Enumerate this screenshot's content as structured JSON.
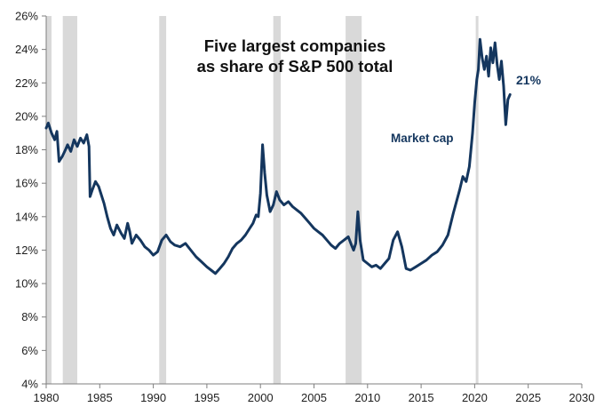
{
  "chart_data": {
    "type": "line",
    "title_line1": "Five largest companies",
    "title_line2": "as share of S&P 500 total",
    "xlabel": "",
    "ylabel": "",
    "xlim": [
      1980,
      2030
    ],
    "ylim": [
      4,
      26
    ],
    "x_ticks": [
      1980,
      1985,
      1990,
      1995,
      2000,
      2005,
      2010,
      2015,
      2020,
      2025,
      2030
    ],
    "x_tick_labels": [
      "1980",
      "1985",
      "1990",
      "1995",
      "2000",
      "2005",
      "2010",
      "2015",
      "2020",
      "2025",
      "2030"
    ],
    "y_ticks": [
      4,
      6,
      8,
      10,
      12,
      14,
      16,
      18,
      20,
      22,
      24,
      26
    ],
    "y_tick_labels": [
      "4%",
      "6%",
      "8%",
      "10%",
      "12%",
      "14%",
      "16%",
      "18%",
      "20%",
      "22%",
      "24%",
      "26%"
    ],
    "grid": false,
    "recessions": [
      {
        "start": 1980.0,
        "end": 1980.5
      },
      {
        "start": 1981.55,
        "end": 1982.9
      },
      {
        "start": 1990.55,
        "end": 1991.2
      },
      {
        "start": 2001.2,
        "end": 2001.9
      },
      {
        "start": 2007.95,
        "end": 2009.45
      },
      {
        "start": 2020.1,
        "end": 2020.35
      }
    ],
    "series": [
      {
        "name": "Market cap",
        "color": "#14365e",
        "end_label": "21%",
        "x": [
          1980.0,
          1980.2,
          1980.5,
          1980.8,
          1981.0,
          1981.2,
          1981.5,
          1981.8,
          1982.0,
          1982.3,
          1982.6,
          1982.9,
          1983.2,
          1983.5,
          1983.8,
          1984.0,
          1984.1,
          1984.3,
          1984.6,
          1984.9,
          1985.1,
          1985.4,
          1985.7,
          1986.0,
          1986.3,
          1986.6,
          1987.0,
          1987.3,
          1987.6,
          1987.8,
          1988.0,
          1988.4,
          1988.8,
          1989.2,
          1989.6,
          1990.0,
          1990.4,
          1990.8,
          1991.2,
          1991.6,
          1992.0,
          1992.5,
          1993.0,
          1993.5,
          1994.0,
          1994.5,
          1995.0,
          1995.4,
          1995.8,
          1996.2,
          1996.6,
          1997.0,
          1997.4,
          1997.8,
          1998.2,
          1998.6,
          1999.0,
          1999.3,
          1999.6,
          1999.8,
          2000.0,
          2000.2,
          2000.4,
          2000.6,
          2000.9,
          2001.2,
          2001.5,
          2001.8,
          2002.2,
          2002.6,
          2003.0,
          2003.4,
          2003.8,
          2004.2,
          2004.6,
          2005.0,
          2005.4,
          2005.8,
          2006.2,
          2006.6,
          2007.0,
          2007.4,
          2007.8,
          2008.2,
          2008.5,
          2008.7,
          2008.9,
          2009.1,
          2009.3,
          2009.6,
          2010.0,
          2010.4,
          2010.8,
          2011.2,
          2011.6,
          2012.0,
          2012.4,
          2012.8,
          2013.2,
          2013.6,
          2014.0,
          2014.5,
          2015.0,
          2015.5,
          2016.0,
          2016.5,
          2017.0,
          2017.5,
          2018.0,
          2018.3,
          2018.6,
          2018.9,
          2019.2,
          2019.5,
          2019.8,
          2020.0,
          2020.2,
          2020.35,
          2020.5,
          2020.7,
          2020.9,
          2021.1,
          2021.3,
          2021.5,
          2021.7,
          2021.9,
          2022.1,
          2022.3,
          2022.5,
          2022.7,
          2022.9,
          2023.1,
          2023.3
        ],
        "values": [
          19.3,
          19.6,
          19.0,
          18.6,
          19.1,
          17.3,
          17.6,
          18.0,
          18.3,
          17.9,
          18.6,
          18.2,
          18.7,
          18.4,
          18.9,
          18.2,
          15.2,
          15.6,
          16.1,
          15.8,
          15.4,
          14.8,
          14.0,
          13.3,
          12.9,
          13.5,
          13.0,
          12.7,
          13.6,
          13.1,
          12.4,
          12.9,
          12.6,
          12.2,
          12.0,
          11.7,
          11.9,
          12.6,
          12.9,
          12.5,
          12.3,
          12.2,
          12.4,
          12.0,
          11.6,
          11.3,
          11.0,
          10.8,
          10.6,
          10.9,
          11.2,
          11.6,
          12.1,
          12.4,
          12.6,
          12.9,
          13.3,
          13.6,
          14.1,
          14.0,
          15.4,
          18.3,
          16.6,
          15.3,
          14.3,
          14.7,
          15.5,
          15.0,
          14.7,
          14.9,
          14.6,
          14.4,
          14.2,
          13.9,
          13.6,
          13.3,
          13.1,
          12.9,
          12.6,
          12.3,
          12.1,
          12.4,
          12.6,
          12.8,
          12.3,
          12.0,
          12.4,
          14.3,
          12.6,
          11.4,
          11.2,
          11.0,
          11.1,
          10.9,
          11.2,
          11.5,
          12.6,
          13.1,
          12.2,
          10.9,
          10.8,
          11.0,
          11.2,
          11.4,
          11.7,
          11.9,
          12.3,
          12.9,
          14.2,
          14.9,
          15.6,
          16.4,
          16.1,
          17.0,
          19.0,
          20.8,
          22.2,
          22.8,
          24.6,
          23.5,
          22.8,
          23.6,
          22.4,
          24.1,
          23.2,
          24.4,
          23.1,
          22.2,
          23.3,
          21.8,
          19.5,
          21.0,
          21.3
        ]
      }
    ]
  }
}
